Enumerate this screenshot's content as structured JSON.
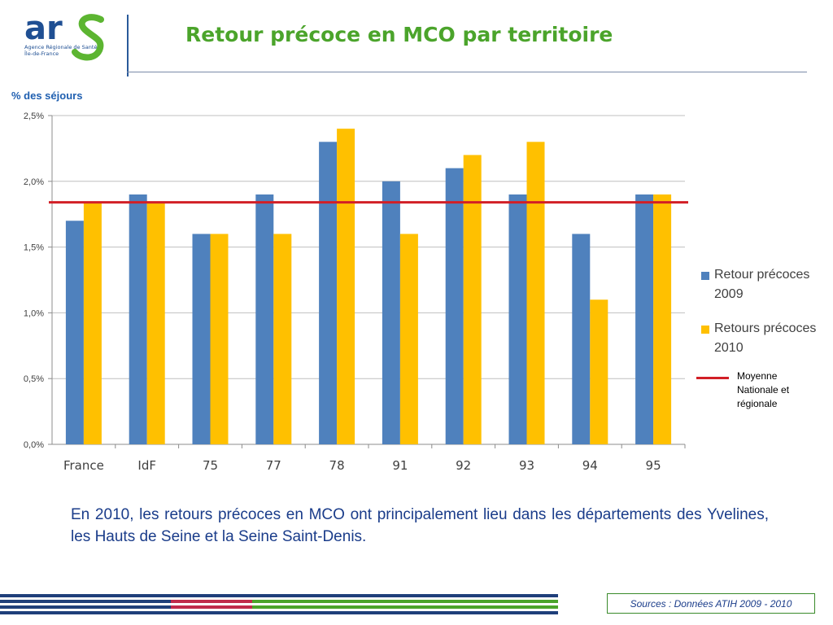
{
  "header": {
    "logo_text": "ars",
    "logo_subtitle_1": "Agence Régionale de Santé",
    "logo_subtitle_2": "Île-de-France",
    "title": "Retour précoce en MCO par territoire"
  },
  "colors": {
    "series_2009": "#4f81bd",
    "series_2010": "#ffc000",
    "reference": "#d21f26",
    "title": "#4ba42b"
  },
  "chart_data": {
    "type": "bar",
    "ylabel": "% des séjours",
    "categories": [
      "France",
      "IdF",
      "75",
      "77",
      "78",
      "91",
      "92",
      "93",
      "94",
      "95"
    ],
    "series": [
      {
        "name": "Retour précoces 2009",
        "values": [
          1.7,
          1.9,
          1.6,
          1.9,
          2.3,
          2.0,
          2.1,
          1.9,
          1.6,
          1.9
        ]
      },
      {
        "name": "Retours précoces 2010",
        "values": [
          1.84,
          1.84,
          1.6,
          1.6,
          2.4,
          1.6,
          2.2,
          2.3,
          1.1,
          1.9
        ]
      }
    ],
    "ylim": [
      0,
      2.5
    ],
    "yticks": [
      0.0,
      0.5,
      1.0,
      1.5,
      2.0,
      2.5
    ],
    "ytick_labels": [
      "0,0%",
      "0,5%",
      "1,0%",
      "1,5%",
      "2,0%",
      "2,5%"
    ],
    "reference_line": {
      "label": "Moyenne Nationale et régionale",
      "value": 1.84
    },
    "grid": true,
    "legend_position": "right"
  },
  "legend": {
    "series_2009": "Retour précoces 2009",
    "series_2010": "Retours précoces 2010",
    "reference": "Moyenne Nationale et régionale"
  },
  "body_text": "En 2010, les retours précoces en MCO ont principalement lieu dans les départements des Yvelines, les Hauts de Seine et la Seine Saint-Denis.",
  "footer": {
    "source": "Sources : Données ATIH 2009 - 2010"
  }
}
